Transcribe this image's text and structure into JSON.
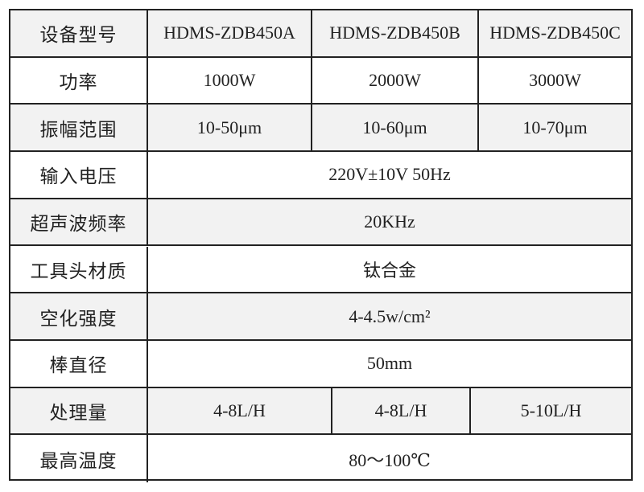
{
  "rows": [
    {
      "label": "设备型号",
      "values": [
        "HDMS-ZDB450A",
        "HDMS-ZDB450B",
        "HDMS-ZDB450C"
      ]
    },
    {
      "label": "功率",
      "values": [
        "1000W",
        "2000W",
        "3000W"
      ]
    },
    {
      "label": "振幅范围",
      "values": [
        "10-50μm",
        "10-60μm",
        "10-70μm"
      ]
    },
    {
      "label": "输入电压",
      "values": [
        "220V±10V 50Hz"
      ]
    },
    {
      "label": "超声波频率",
      "values": [
        "20KHz"
      ]
    },
    {
      "label": "工具头材质",
      "values": [
        "钛合金"
      ]
    },
    {
      "label": "空化强度",
      "values": [
        "4-4.5w/cm²"
      ]
    },
    {
      "label": "棒直径",
      "values": [
        "50mm"
      ]
    },
    {
      "label": "处理量",
      "values": [
        "4-8L/H",
        "4-8L/H",
        "5-10L/H"
      ]
    },
    {
      "label": "最高温度",
      "values": [
        "80～100℃"
      ]
    }
  ],
  "colors": {
    "stripe": "#f2f2f2",
    "border": "#222222"
  }
}
